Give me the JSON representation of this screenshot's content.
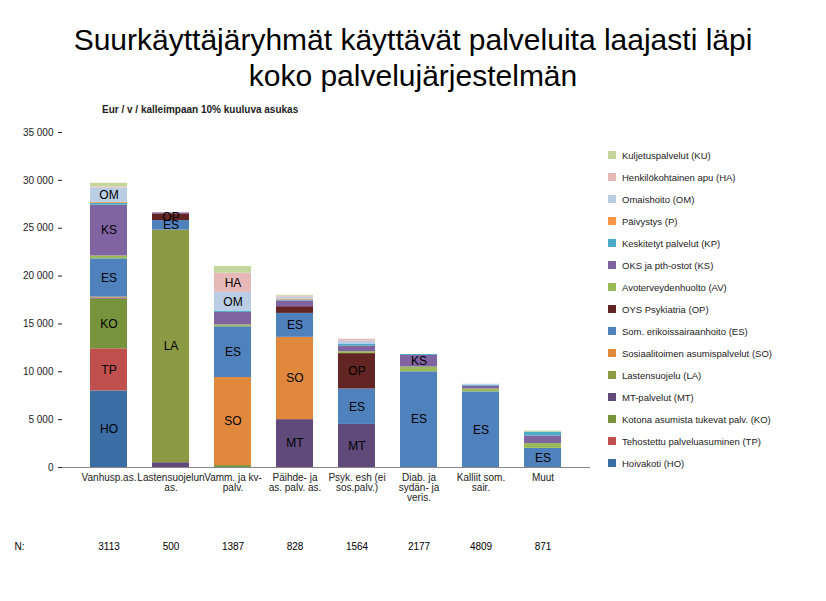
{
  "chart_data": {
    "type": "bar",
    "stacked": true,
    "title": "Suurkäyttäjäryhmät käyttävät palveluita laajasti läpi koko palvelujärjestelmän",
    "y_label": "Eur / v / kalleimpaan 10% kuuluva asukas",
    "categories": [
      "Vanhusp.as.",
      "Lastensuojelun as.",
      "Vamm. ja kv-palv.",
      "Päihde- ja as. palv. as.",
      "Psyk. esh (ei sos.palv.)",
      "Diab. ja sydän- ja veris.",
      "Kalliit som. sair.",
      "Muut"
    ],
    "n_label": "N:",
    "n_values": [
      3113,
      500,
      1387,
      828,
      1564,
      2177,
      4809,
      871
    ],
    "ylim": [
      0,
      35000
    ],
    "yticks": [
      0,
      {
        "value": 5000,
        "label": "5 000"
      },
      {
        "value": 10000,
        "label": "10 000"
      },
      {
        "value": 15000,
        "label": "15 000"
      },
      {
        "value": 20000,
        "label": "20 000"
      },
      {
        "value": 25000,
        "label": "25 000"
      },
      {
        "value": 30000,
        "label": "30 000"
      },
      {
        "value": 35000,
        "label": "35 000"
      }
    ],
    "grid": false,
    "legend": "right",
    "data_labels": false,
    "series": [
      {
        "name": "Hoivakoti (HO)",
        "color": "#3a6ea5",
        "values": [
          8000,
          0,
          0,
          0,
          0,
          0,
          0,
          0
        ],
        "segment_labels": [
          "HO",
          null,
          null,
          null,
          null,
          null,
          null,
          null
        ]
      },
      {
        "name": "Tehostettu palveluasuminen (TP)",
        "color": "#c0504d",
        "values": [
          4400,
          0,
          0,
          0,
          0,
          0,
          0,
          0
        ],
        "segment_labels": [
          "TP",
          null,
          null,
          null,
          null,
          null,
          null,
          null
        ]
      },
      {
        "name": "Kotona asumista tukevat palv. (KO)",
        "color": "#77933c",
        "values": [
          5200,
          0,
          200,
          0,
          0,
          0,
          0,
          0
        ],
        "segment_labels": [
          "KO",
          null,
          null,
          null,
          null,
          null,
          null,
          null
        ]
      },
      {
        "name": "MT-palvelut (MT)",
        "color": "#604a7b",
        "values": [
          100,
          500,
          0,
          5000,
          4500,
          0,
          0,
          0
        ],
        "segment_labels": [
          null,
          null,
          null,
          "MT",
          "MT",
          null,
          null,
          null
        ]
      },
      {
        "name": "Lastensuojelu (LA)",
        "color": "#8c9a44",
        "values": [
          0,
          24300,
          0,
          0,
          0,
          0,
          0,
          0
        ],
        "segment_labels": [
          null,
          "LA",
          null,
          null,
          null,
          null,
          null,
          null
        ]
      },
      {
        "name": "Sosiaalitoimen asumispalvelut (SO)",
        "color": "#e0893c",
        "values": [
          100,
          0,
          9200,
          8600,
          0,
          0,
          0,
          0
        ],
        "segment_labels": [
          null,
          null,
          "SO",
          "SO",
          null,
          null,
          null,
          null
        ]
      },
      {
        "name": "Som. erikoissairaanhoito (ES)",
        "color": "#4f81bd",
        "values": [
          4000,
          1000,
          5300,
          2500,
          3700,
          10000,
          7900,
          2000
        ],
        "segment_labels": [
          "ES",
          "ES",
          "ES",
          "ES",
          "ES",
          "ES",
          "ES",
          "ES"
        ]
      },
      {
        "name": "OYS Psykiatria (OP)",
        "color": "#632523",
        "values": [
          0,
          700,
          0,
          700,
          3700,
          0,
          0,
          0
        ],
        "segment_labels": [
          null,
          "OP",
          null,
          null,
          "OP",
          null,
          null,
          null
        ]
      },
      {
        "name": "Avoterveydenhuolto (AV)",
        "color": "#9bbb59",
        "values": [
          300,
          0,
          200,
          0,
          200,
          500,
          300,
          500
        ]
      },
      {
        "name": "OKS ja pth-ostot (KS)",
        "color": "#8064a2",
        "values": [
          5300,
          100,
          1300,
          600,
          600,
          1200,
          300,
          800
        ],
        "segment_labels": [
          "KS",
          null,
          null,
          null,
          null,
          "KS",
          null,
          null
        ]
      },
      {
        "name": "Keskitetyt palvelut (KP)",
        "color": "#4bacc6",
        "values": [
          200,
          0,
          100,
          100,
          200,
          100,
          100,
          400
        ]
      },
      {
        "name": "Päivystys (P)",
        "color": "#f79646",
        "values": [
          100,
          0,
          0,
          100,
          0,
          0,
          0,
          0
        ]
      },
      {
        "name": "Omaishoito (OM)",
        "color": "#b9cde5",
        "values": [
          1500,
          0,
          2000,
          200,
          300,
          0,
          100,
          0
        ],
        "segment_labels": [
          "OM",
          null,
          "OM",
          null,
          null,
          null,
          null,
          null
        ]
      },
      {
        "name": "Henkilökohtainen apu (HA)",
        "color": "#e6b9b8",
        "values": [
          100,
          0,
          2000,
          100,
          200,
          0,
          0,
          0
        ],
        "segment_labels": [
          null,
          null,
          "HA",
          null,
          null,
          null,
          null,
          null
        ]
      },
      {
        "name": "Kuljetuspalvelut (KU)",
        "color": "#c3d69b",
        "values": [
          400,
          0,
          700,
          100,
          0,
          0,
          0,
          100
        ]
      }
    ]
  }
}
